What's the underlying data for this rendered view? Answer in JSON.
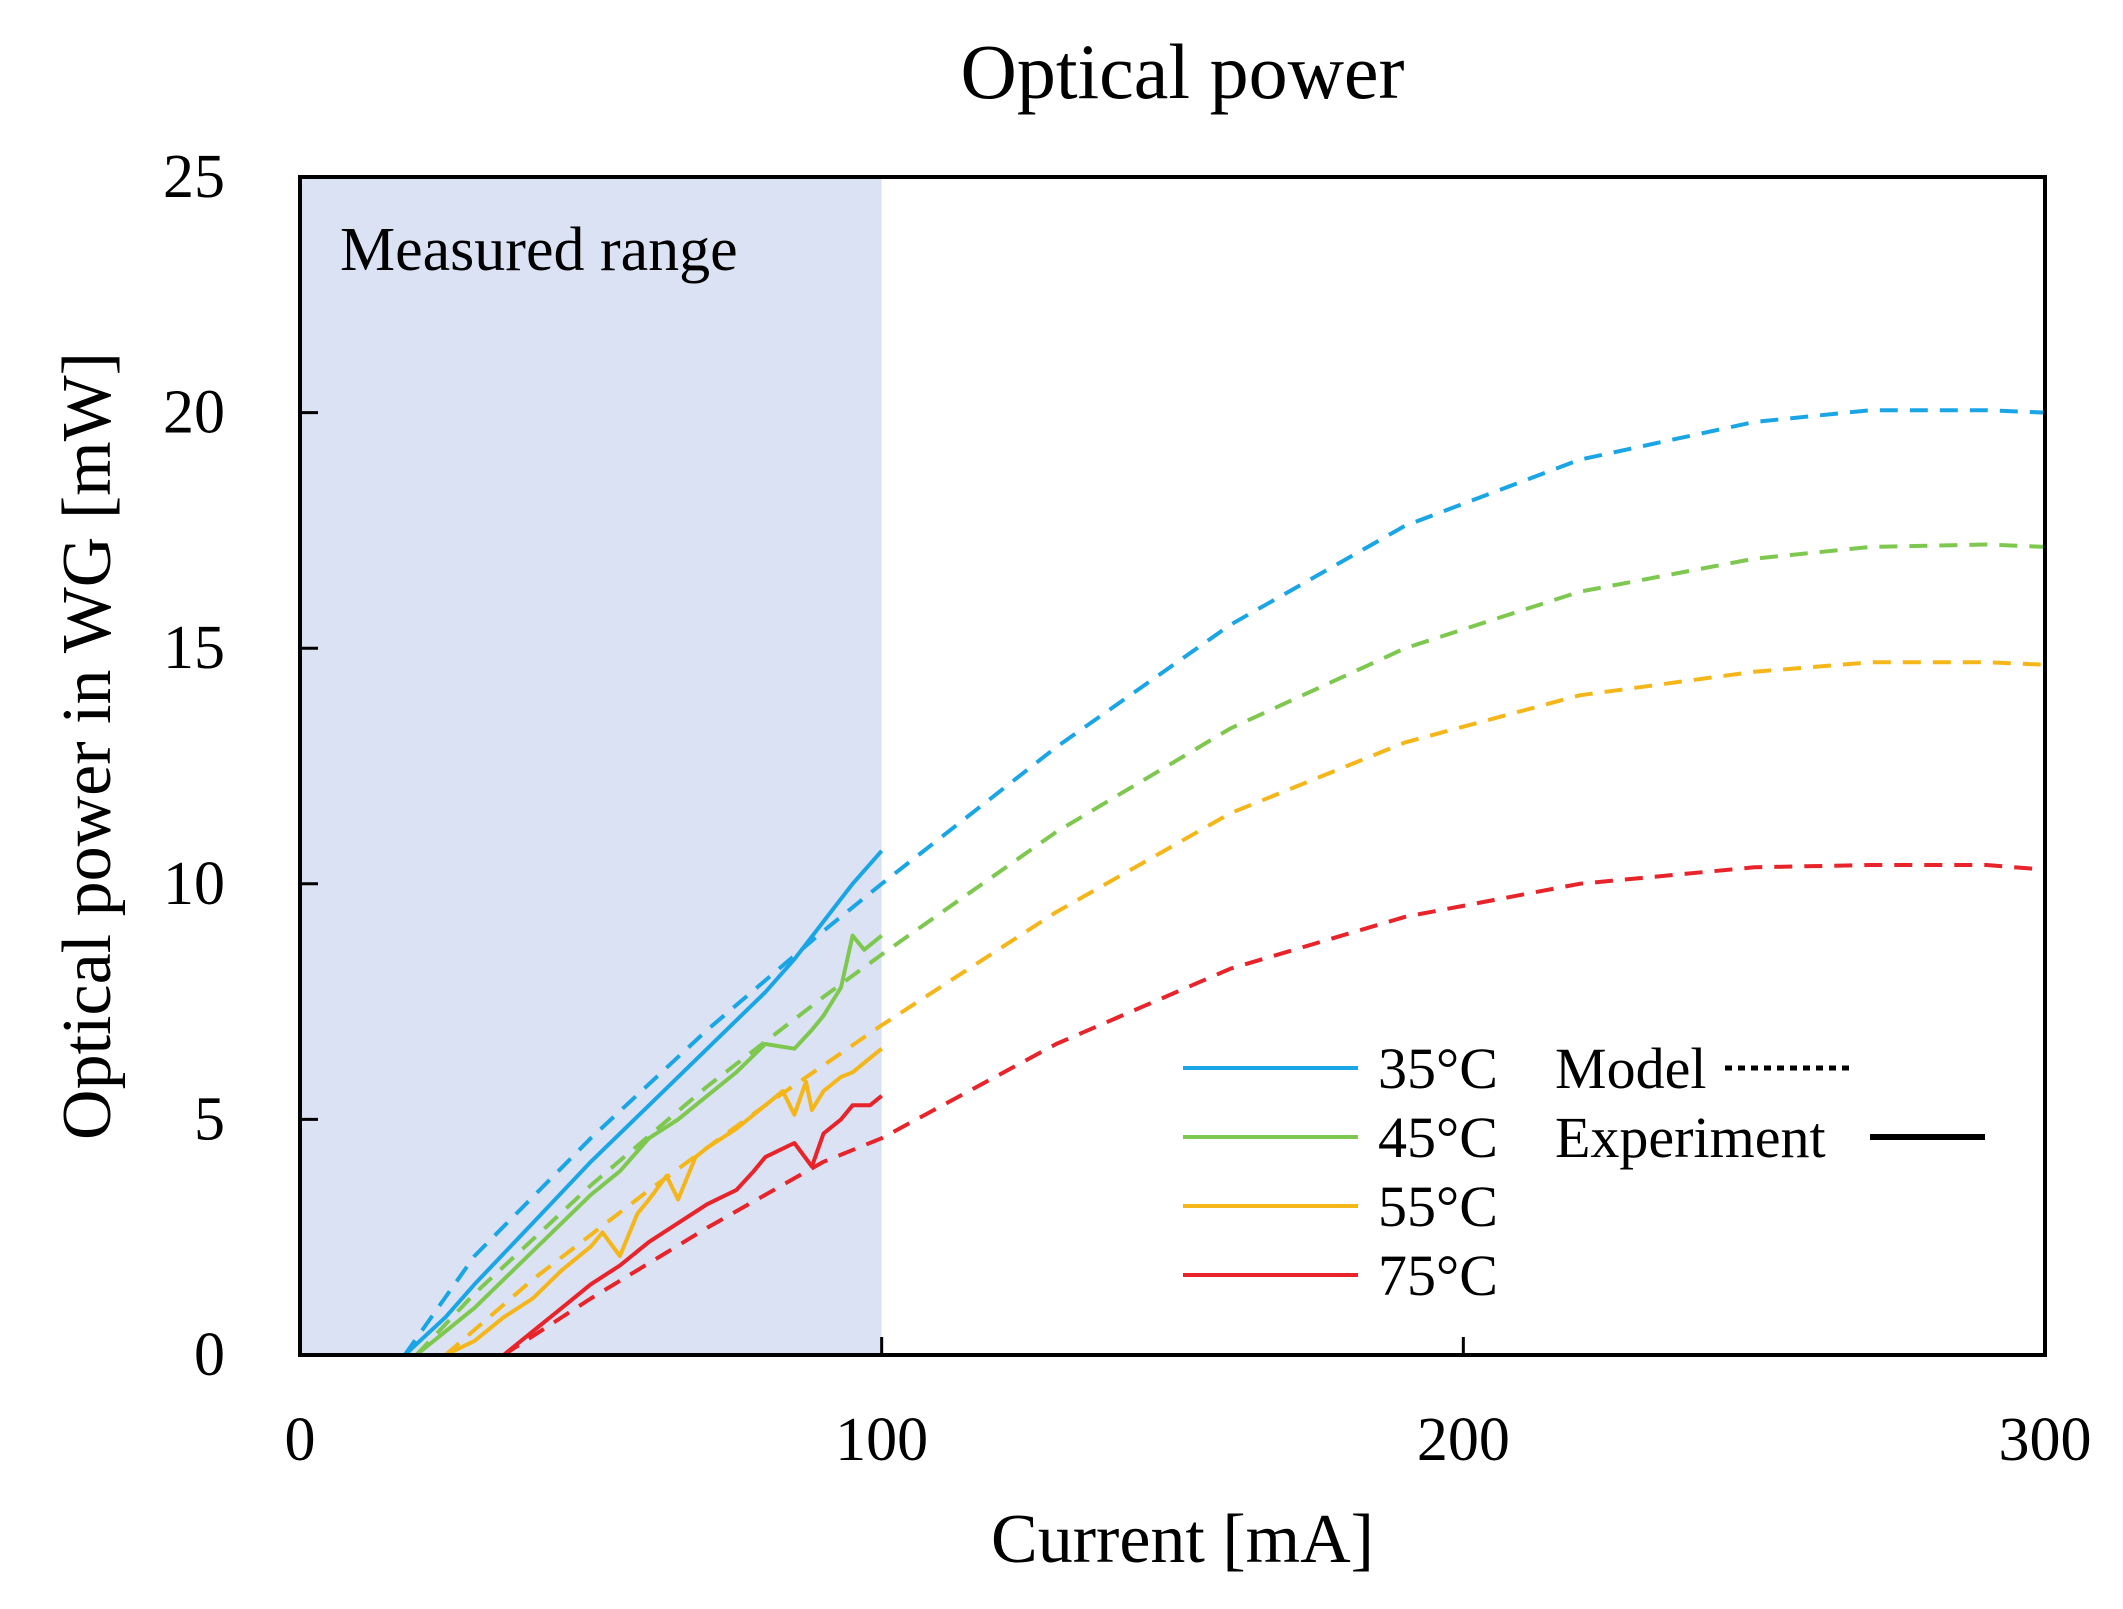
{
  "chart_data": {
    "type": "line",
    "title": "Optical power",
    "xlabel": "Current [mA]",
    "ylabel": "Optical power in WG [mW]",
    "xlim": [
      0,
      300
    ],
    "ylim": [
      0,
      25
    ],
    "xticks": [
      "0",
      "100",
      "200",
      "300"
    ],
    "yticks": [
      "0",
      "5",
      "10",
      "15",
      "20",
      "25"
    ],
    "grid": false,
    "legend_position": "bottom-right",
    "region": {
      "label": "Measured range",
      "x_range": [
        0,
        100
      ],
      "color": "#dbe2f3"
    },
    "style_legend": {
      "model_label": "Model",
      "experiment_label": "Experiment"
    },
    "series": [
      {
        "name": "35°C",
        "color": "#1aa6e6",
        "model": {
          "x": [
            18,
            30,
            50,
            70,
            90,
            100,
            130,
            160,
            190,
            220,
            250,
            270,
            290,
            300
          ],
          "y": [
            0,
            2.1,
            4.6,
            6.9,
            9.0,
            10.0,
            12.9,
            15.5,
            17.6,
            19.0,
            19.8,
            20.05,
            20.05,
            20.0
          ]
        },
        "experiment": {
          "x": [
            0,
            18,
            25,
            30,
            40,
            50,
            60,
            70,
            80,
            85,
            90,
            95,
            100
          ],
          "y": [
            0,
            0,
            0.8,
            1.5,
            2.8,
            4.1,
            5.3,
            6.5,
            7.7,
            8.4,
            9.2,
            10.0,
            10.7
          ]
        }
      },
      {
        "name": "45°C",
        "color": "#7ec850",
        "model": {
          "x": [
            20,
            30,
            50,
            70,
            90,
            100,
            130,
            160,
            190,
            220,
            250,
            270,
            290,
            300
          ],
          "y": [
            0,
            1.3,
            3.6,
            5.7,
            7.6,
            8.5,
            11.1,
            13.3,
            15.0,
            16.2,
            16.9,
            17.15,
            17.2,
            17.15
          ]
        },
        "experiment": {
          "x": [
            0,
            20,
            25,
            30,
            40,
            50,
            55,
            60,
            65,
            70,
            75,
            80,
            85,
            88,
            90,
            93,
            95,
            97,
            100
          ],
          "y": [
            0,
            0,
            0.5,
            1.0,
            2.2,
            3.4,
            3.9,
            4.6,
            5.0,
            5.5,
            6.0,
            6.6,
            6.5,
            6.9,
            7.2,
            7.8,
            8.9,
            8.6,
            8.9
          ]
        }
      },
      {
        "name": "55°C",
        "color": "#f5b61a",
        "model": {
          "x": [
            25,
            40,
            60,
            80,
            100,
            130,
            160,
            190,
            220,
            250,
            270,
            290,
            300
          ],
          "y": [
            0,
            1.6,
            3.5,
            5.3,
            7.0,
            9.4,
            11.5,
            13.0,
            14.0,
            14.5,
            14.7,
            14.7,
            14.65
          ]
        },
        "experiment": {
          "x": [
            0,
            25,
            30,
            35,
            40,
            45,
            50,
            52,
            55,
            58,
            60,
            63,
            65,
            68,
            70,
            75,
            80,
            83,
            85,
            87,
            88,
            90,
            93,
            95,
            98,
            100
          ],
          "y": [
            0,
            0,
            0.3,
            0.8,
            1.2,
            1.8,
            2.3,
            2.6,
            2.1,
            3.0,
            3.3,
            3.8,
            3.3,
            4.2,
            4.4,
            4.8,
            5.3,
            5.6,
            5.1,
            5.8,
            5.2,
            5.6,
            5.9,
            6.0,
            6.3,
            6.5
          ]
        }
      },
      {
        "name": "75°C",
        "color": "#e8232a",
        "model": {
          "x": [
            35,
            50,
            70,
            90,
            100,
            130,
            160,
            190,
            220,
            250,
            270,
            290,
            300
          ],
          "y": [
            0,
            1.2,
            2.7,
            4.1,
            4.6,
            6.6,
            8.2,
            9.3,
            10.0,
            10.35,
            10.4,
            10.4,
            10.3
          ]
        },
        "experiment": {
          "x": [
            0,
            35,
            40,
            45,
            50,
            55,
            60,
            65,
            70,
            75,
            78,
            80,
            85,
            88,
            90,
            93,
            95,
            98,
            100
          ],
          "y": [
            0,
            0,
            0.5,
            1.0,
            1.5,
            1.9,
            2.4,
            2.8,
            3.2,
            3.5,
            3.9,
            4.2,
            4.5,
            4.0,
            4.7,
            5.0,
            5.3,
            5.3,
            5.5
          ]
        }
      }
    ]
  }
}
